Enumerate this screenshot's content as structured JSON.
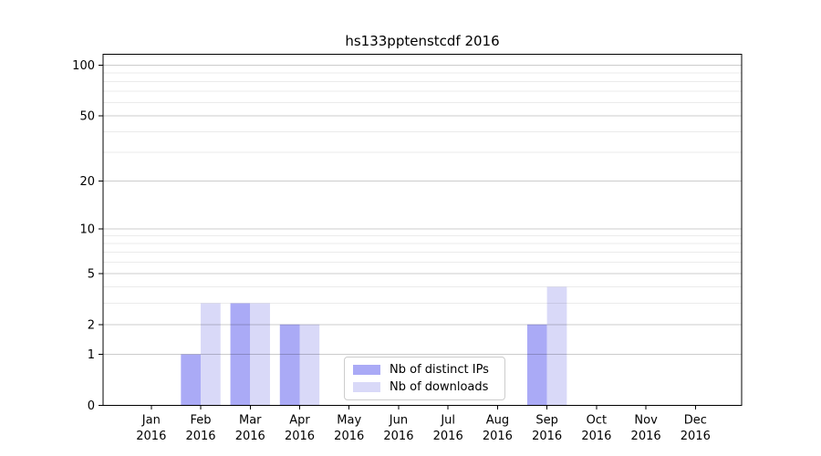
{
  "chart_data": {
    "type": "bar",
    "title": "hs133pptenstcdf 2016",
    "categories": [
      {
        "month": "Jan",
        "year": "2016"
      },
      {
        "month": "Feb",
        "year": "2016"
      },
      {
        "month": "Mar",
        "year": "2016"
      },
      {
        "month": "Apr",
        "year": "2016"
      },
      {
        "month": "May",
        "year": "2016"
      },
      {
        "month": "Jun",
        "year": "2016"
      },
      {
        "month": "Jul",
        "year": "2016"
      },
      {
        "month": "Aug",
        "year": "2016"
      },
      {
        "month": "Sep",
        "year": "2016"
      },
      {
        "month": "Oct",
        "year": "2016"
      },
      {
        "month": "Nov",
        "year": "2016"
      },
      {
        "month": "Dec",
        "year": "2016"
      }
    ],
    "series": [
      {
        "name": "Nb of distinct IPs",
        "color": "#aaaaf6",
        "values": [
          0,
          1,
          3,
          2,
          0,
          0,
          0,
          0,
          2,
          0,
          0,
          0
        ]
      },
      {
        "name": "Nb of downloads",
        "color": "#d9d9f8",
        "values": [
          0,
          3,
          3,
          2,
          0,
          0,
          0,
          0,
          4,
          0,
          0,
          0
        ]
      }
    ],
    "yscale": "log1p",
    "ylim": [
      0,
      117
    ],
    "yticks": [
      0,
      1,
      2,
      5,
      10,
      20,
      50,
      100
    ],
    "minor_yticks": [
      3,
      4,
      6,
      7,
      8,
      9,
      30,
      40,
      60,
      70,
      80,
      90
    ],
    "grid": true,
    "legend_position": "lower center",
    "colors": {
      "background": "#ffffff",
      "spine": "#000000",
      "text": "#000000",
      "grid_major": "rgba(0,0,0,0.20)",
      "grid_minor": "rgba(0,0,0,0.08)"
    }
  }
}
